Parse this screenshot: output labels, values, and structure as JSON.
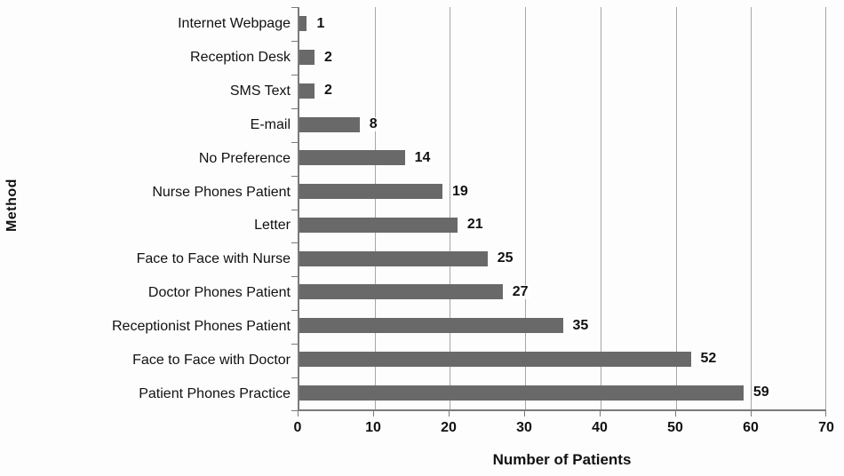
{
  "chart_data": {
    "type": "bar",
    "orientation": "horizontal",
    "title": "",
    "xlabel": "Number of Patients",
    "ylabel": "Method",
    "categories": [
      "Internet Webpage",
      "Reception Desk",
      "SMS Text",
      "E-mail",
      "No Preference",
      "Nurse Phones Patient",
      "Letter",
      "Face to Face with Nurse",
      "Doctor Phones Patient",
      "Receptionist Phones Patient",
      "Face to Face with Doctor",
      "Patient Phones Practice"
    ],
    "values": [
      1,
      2,
      2,
      8,
      14,
      19,
      21,
      25,
      27,
      35,
      52,
      59
    ],
    "data_labels": [
      "1",
      "2",
      "2",
      "8",
      "14",
      "19",
      "21",
      "25",
      "27",
      "35",
      "52",
      "59"
    ],
    "xlim": [
      0,
      70
    ],
    "xticks": [
      0,
      10,
      20,
      30,
      40,
      50,
      60,
      70
    ],
    "grid": "vertical",
    "legend": "none",
    "bar_color": "#696969",
    "gridline_color": "#a6a6a6",
    "axis_color": "#7a7a7a"
  }
}
